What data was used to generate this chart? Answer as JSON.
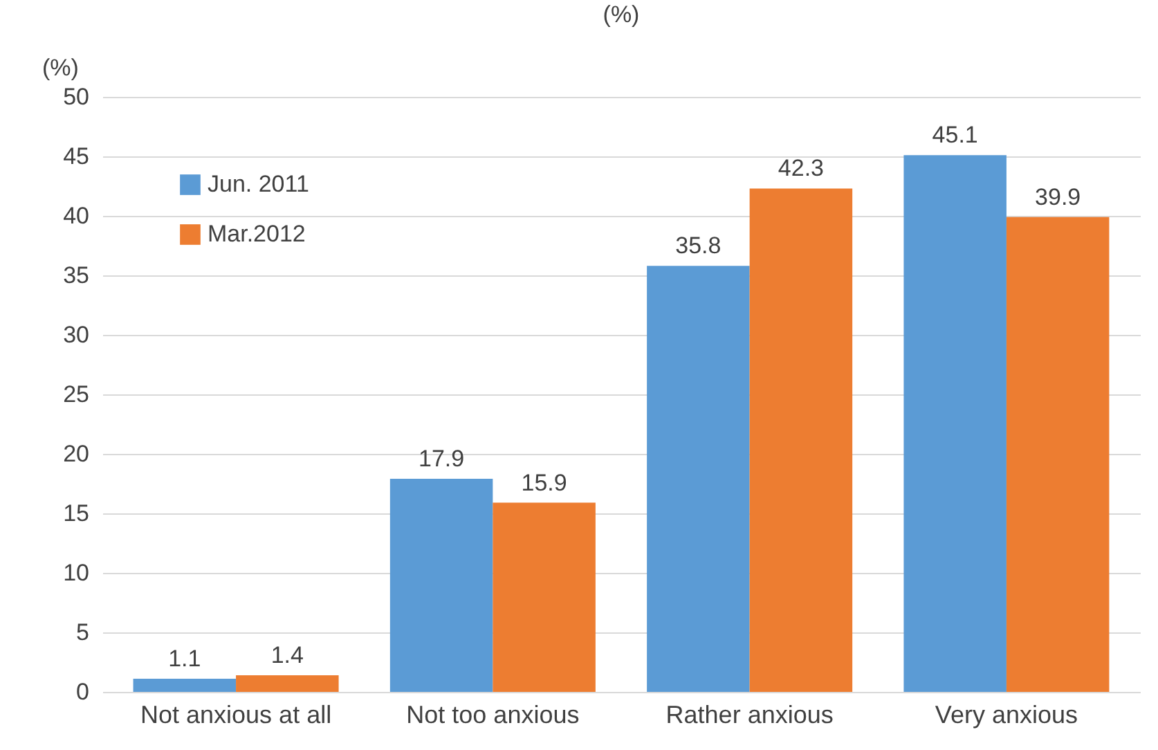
{
  "chart_data": {
    "type": "bar",
    "title": "(%)",
    "ylabel": "(%)",
    "categories": [
      "Not anxious at all",
      "Not too anxious",
      "Rather anxious",
      "Very anxious"
    ],
    "series": [
      {
        "name": "Jun. 2011",
        "color": "#5b9bd5",
        "values": [
          1.1,
          17.9,
          35.8,
          45.1
        ]
      },
      {
        "name": "Mar.2012",
        "color": "#ed7d31",
        "values": [
          1.4,
          15.9,
          42.3,
          39.9
        ]
      }
    ],
    "ylim": [
      0,
      50
    ],
    "yticks": [
      0,
      5,
      10,
      15,
      20,
      25,
      30,
      35,
      40,
      45,
      50
    ],
    "grid": "y",
    "legend": "top left",
    "data_labels": true
  }
}
